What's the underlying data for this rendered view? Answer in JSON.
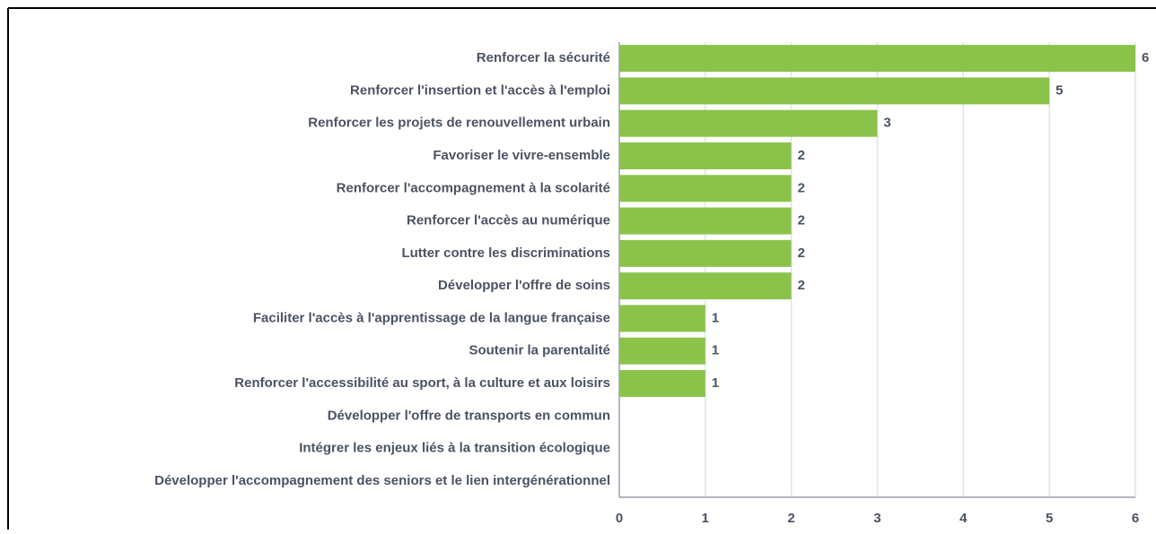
{
  "chart_data": {
    "type": "barh",
    "categories": [
      "Renforcer la sécurité",
      "Renforcer l'insertion et l'accès à l'emploi",
      "Renforcer les projets de renouvellement urbain",
      "Favoriser le vivre-ensemble",
      "Renforcer l'accompagnement à la scolarité",
      "Renforcer l'accès au numérique",
      "Lutter contre les discriminations",
      "Développer l'offre de soins",
      "Faciliter l'accès à l'apprentissage de la langue française",
      "Soutenir la parentalité",
      "Renforcer l'accessibilité au sport, à la culture et aux loisirs",
      "Développer l'offre de transports en commun",
      "Intégrer les enjeux liés à la transition écologique",
      "Développer l'accompagnement des seniors et le lien intergénérationnel"
    ],
    "values": [
      6,
      5,
      3,
      2,
      2,
      2,
      2,
      2,
      1,
      1,
      1,
      0,
      0,
      0
    ],
    "color": "#8bc34a",
    "xlim": [
      0,
      6
    ],
    "xticks": [
      0,
      1,
      2,
      3,
      4,
      5,
      6
    ],
    "grid": true
  }
}
